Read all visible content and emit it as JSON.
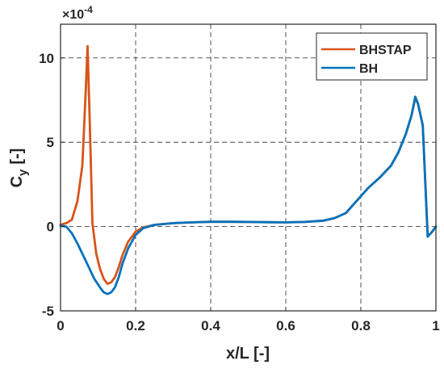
{
  "chart_data": {
    "type": "line",
    "xlabel": "x/L [-]",
    "ylabel_main": "C",
    "ylabel_sub": "y",
    "ylabel_unit": "[-]",
    "y_exponent_label": "×10",
    "y_exponent_power": "-4",
    "xlim": [
      0,
      1
    ],
    "ylim": [
      -5,
      12
    ],
    "x_ticks": [
      0,
      0.2,
      0.4,
      0.6,
      0.8,
      1
    ],
    "x_tick_labels": [
      "0",
      "0.2",
      "0.4",
      "0.6",
      "0.8",
      "1"
    ],
    "y_ticks": [
      -5,
      0,
      5,
      10
    ],
    "y_tick_labels": [
      "-5",
      "0",
      "5",
      "10"
    ],
    "grid": true,
    "legend_position": "top-right",
    "series": [
      {
        "name": "BHSTAP",
        "color": "#D95319",
        "x": [
          0,
          0.015,
          0.03,
          0.045,
          0.058,
          0.066,
          0.072,
          0.078,
          0.085,
          0.095,
          0.105,
          0.115,
          0.125,
          0.135,
          0.145,
          0.155,
          0.165,
          0.18,
          0.2,
          0.22,
          0.25,
          0.3,
          0.35,
          0.4,
          0.45,
          0.5,
          0.55,
          0.6,
          0.65,
          0.7,
          0.73,
          0.76,
          0.78,
          0.8,
          0.82,
          0.85,
          0.88,
          0.9,
          0.92,
          0.935,
          0.945,
          0.952,
          0.965,
          0.978,
          0.99,
          1.0
        ],
        "values": [
          0.1,
          0.2,
          0.4,
          1.5,
          3.6,
          7.5,
          10.7,
          6.0,
          0.2,
          -1.6,
          -2.5,
          -3.1,
          -3.4,
          -3.3,
          -3.0,
          -2.4,
          -1.7,
          -0.9,
          -0.3,
          -0.05,
          0.1,
          0.2,
          0.25,
          0.28,
          0.28,
          0.27,
          0.26,
          0.25,
          0.27,
          0.35,
          0.5,
          0.8,
          1.3,
          1.8,
          2.3,
          2.9,
          3.6,
          4.4,
          5.5,
          6.6,
          7.6,
          7.3,
          6.0,
          -0.6,
          -0.3,
          0.0
        ]
      },
      {
        "name": "BH",
        "color": "#0072BD",
        "x": [
          0,
          0.015,
          0.03,
          0.045,
          0.06,
          0.075,
          0.09,
          0.105,
          0.115,
          0.125,
          0.135,
          0.145,
          0.155,
          0.165,
          0.18,
          0.2,
          0.22,
          0.25,
          0.3,
          0.35,
          0.4,
          0.45,
          0.5,
          0.55,
          0.6,
          0.65,
          0.7,
          0.73,
          0.76,
          0.78,
          0.8,
          0.82,
          0.85,
          0.88,
          0.9,
          0.92,
          0.935,
          0.945,
          0.952,
          0.965,
          0.978,
          0.99,
          1.0
        ],
        "values": [
          0.05,
          0.0,
          -0.4,
          -1.0,
          -1.7,
          -2.4,
          -3.1,
          -3.6,
          -3.9,
          -4.0,
          -3.9,
          -3.6,
          -3.0,
          -2.2,
          -1.3,
          -0.5,
          -0.1,
          0.1,
          0.2,
          0.25,
          0.28,
          0.28,
          0.27,
          0.26,
          0.25,
          0.27,
          0.35,
          0.5,
          0.8,
          1.3,
          1.8,
          2.3,
          2.9,
          3.6,
          4.4,
          5.5,
          6.6,
          7.7,
          7.3,
          6.0,
          -0.6,
          -0.3,
          0.0
        ]
      }
    ]
  }
}
